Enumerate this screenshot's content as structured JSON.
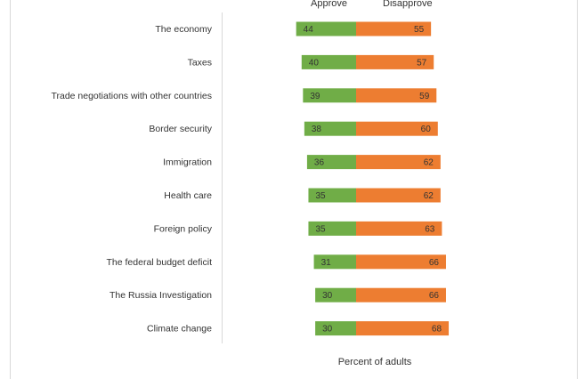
{
  "chart_data": {
    "type": "bar",
    "orientation": "horizontal",
    "layout": "diverging",
    "categories": [
      "The economy",
      "Taxes",
      "Trade negotiations with other countries",
      "Border security",
      "Immigration",
      "Health care",
      "Foreign policy",
      "The federal budget deficit",
      "The Russia Investigation",
      "Climate change"
    ],
    "series": [
      {
        "name": "Approve",
        "color": "#70ad47",
        "values": [
          44,
          40,
          39,
          38,
          36,
          35,
          35,
          31,
          30,
          30
        ]
      },
      {
        "name": "Disapprove",
        "color": "#ed7d31",
        "values": [
          55,
          57,
          59,
          60,
          62,
          62,
          63,
          66,
          66,
          68
        ]
      }
    ],
    "xlabel": "Percent of adults",
    "legend": "top",
    "grid": false
  }
}
